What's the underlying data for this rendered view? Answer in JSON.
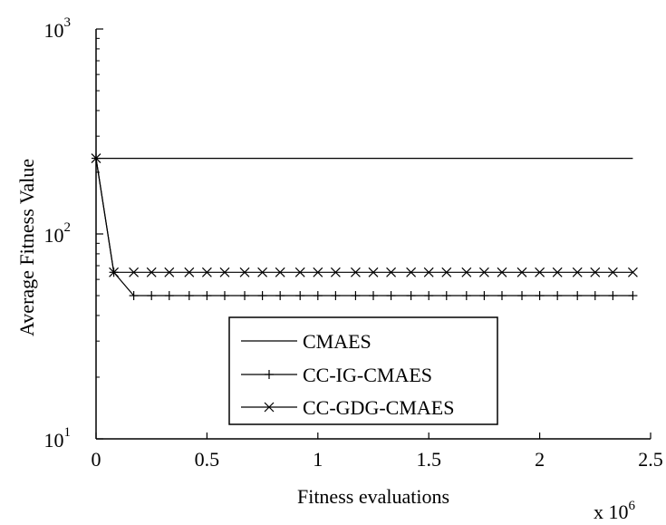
{
  "chart_data": {
    "type": "line",
    "xlabel": "Fitness evaluations",
    "ylabel": "Average Fitness Value",
    "x_multiplier": {
      "base": "x 10",
      "exponent": "6"
    },
    "y_scale": "log",
    "ylim": [
      10,
      1000
    ],
    "xlim": [
      0,
      2.5
    ],
    "x_ticks": [
      {
        "value": 0,
        "label": "0"
      },
      {
        "value": 0.5,
        "label": "0.5"
      },
      {
        "value": 1,
        "label": "1"
      },
      {
        "value": 1.5,
        "label": "1.5"
      },
      {
        "value": 2,
        "label": "2"
      },
      {
        "value": 2.5,
        "label": "2.5"
      }
    ],
    "y_ticks": [
      {
        "value": 10,
        "base": "10",
        "exp": "1"
      },
      {
        "value": 100,
        "base": "10",
        "exp": "2"
      },
      {
        "value": 1000,
        "base": "10",
        "exp": "3"
      }
    ],
    "grid": false,
    "legend_position": "lower-center",
    "series": [
      {
        "name": "CMAES",
        "marker": "none",
        "x": [
          0,
          2.42
        ],
        "y": [
          234,
          234
        ]
      },
      {
        "name": "CC-IG-CMAES",
        "marker": "plus",
        "x": [
          0,
          0.08,
          0.17,
          0.25,
          0.33,
          0.42,
          0.5,
          0.58,
          0.67,
          0.75,
          0.83,
          0.92,
          1.0,
          1.08,
          1.17,
          1.25,
          1.33,
          1.42,
          1.5,
          1.58,
          1.67,
          1.75,
          1.83,
          1.92,
          2.0,
          2.08,
          2.17,
          2.25,
          2.33,
          2.42
        ],
        "y": [
          234,
          65,
          50,
          50,
          50,
          50,
          50,
          50,
          50,
          50,
          50,
          50,
          50,
          50,
          50,
          50,
          50,
          50,
          50,
          50,
          50,
          50,
          50,
          50,
          50,
          50,
          50,
          50,
          50,
          50
        ]
      },
      {
        "name": "CC-GDG-CMAES",
        "marker": "x",
        "x": [
          0,
          0.08,
          0.17,
          0.25,
          0.33,
          0.42,
          0.5,
          0.58,
          0.67,
          0.75,
          0.83,
          0.92,
          1.0,
          1.08,
          1.17,
          1.25,
          1.33,
          1.42,
          1.5,
          1.58,
          1.67,
          1.75,
          1.83,
          1.92,
          2.0,
          2.08,
          2.17,
          2.25,
          2.33,
          2.42
        ],
        "y": [
          234,
          65,
          65,
          65,
          65,
          65,
          65,
          65,
          65,
          65,
          65,
          65,
          65,
          65,
          65,
          65,
          65,
          65,
          65,
          65,
          65,
          65,
          65,
          65,
          65,
          65,
          65,
          65,
          65,
          65
        ]
      }
    ]
  }
}
